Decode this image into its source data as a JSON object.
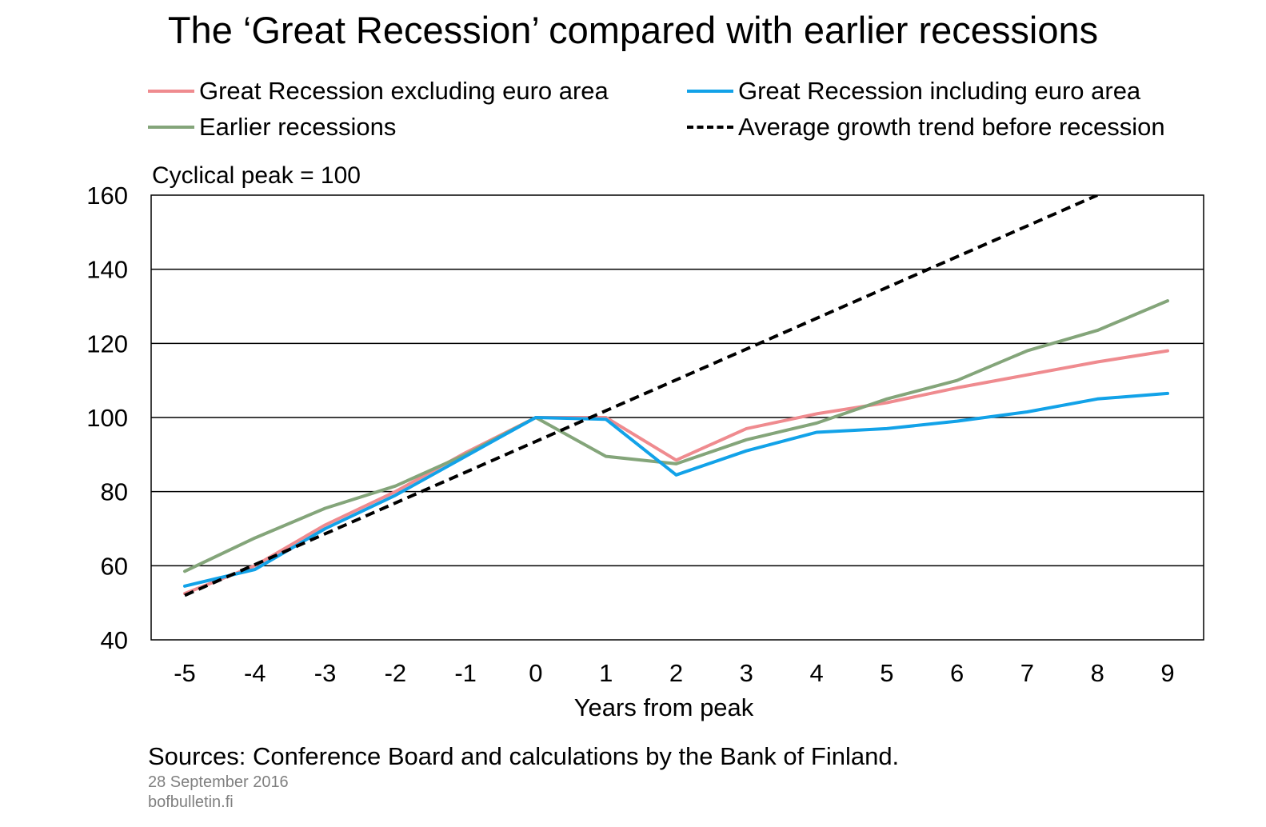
{
  "title": "The ‘Great Recession’ compared with earlier recessions",
  "legend": [
    {
      "label": "Great Recession excluding euro area",
      "color": "#ef8b8f",
      "style": "solid"
    },
    {
      "label": "Great Recession including euro area",
      "color": "#12a2e8",
      "style": "solid"
    },
    {
      "label": "Earlier recessions",
      "color": "#84a57a",
      "style": "solid"
    },
    {
      "label": "Average growth trend before recession",
      "color": "#000000",
      "style": "dashed"
    }
  ],
  "unit_label": "Cyclical peak  = 100",
  "source": "Sources: Conference Board and calculations by the Bank of Finland.",
  "footer": {
    "date": "28 September 2016",
    "site": "bofbulletin.fi"
  },
  "chart_data": {
    "type": "line",
    "xlabel": "Years from peak",
    "ylabel": "",
    "x": [
      -5,
      -4,
      -3,
      -2,
      -1,
      0,
      1,
      2,
      3,
      4,
      5,
      6,
      7,
      8,
      9
    ],
    "xticks": [
      "-5",
      "-4",
      "-3",
      "-2",
      "-1",
      "0",
      "1",
      "2",
      "3",
      "4",
      "5",
      "6",
      "7",
      "8",
      "9"
    ],
    "ylim": [
      40,
      160
    ],
    "yticks": [
      40,
      60,
      80,
      100,
      120,
      140,
      160
    ],
    "grid": true,
    "series": [
      {
        "name": "Great Recession excluding euro area",
        "color": "#ef8b8f",
        "dashed": false,
        "values": [
          52.5,
          60,
          71,
          80,
          90.5,
          100,
          100,
          88.5,
          97,
          101,
          104,
          108,
          111.5,
          115,
          118
        ]
      },
      {
        "name": "Great Recession including euro area",
        "color": "#12a2e8",
        "dashed": false,
        "values": [
          54.5,
          59,
          70,
          79,
          89.5,
          100,
          99.5,
          84.5,
          91,
          96,
          97,
          99,
          101.5,
          105,
          106.5
        ]
      },
      {
        "name": "Earlier recessions",
        "color": "#84a57a",
        "dashed": false,
        "values": [
          58.5,
          67.5,
          75.5,
          81.5,
          90,
          100,
          89.5,
          87.5,
          94,
          98.5,
          105,
          110,
          118,
          123.5,
          131.5
        ]
      },
      {
        "name": "Average growth trend before recession",
        "color": "#000000",
        "dashed": true,
        "x": [
          -5,
          8
        ],
        "values": [
          52,
          160
        ]
      }
    ]
  }
}
